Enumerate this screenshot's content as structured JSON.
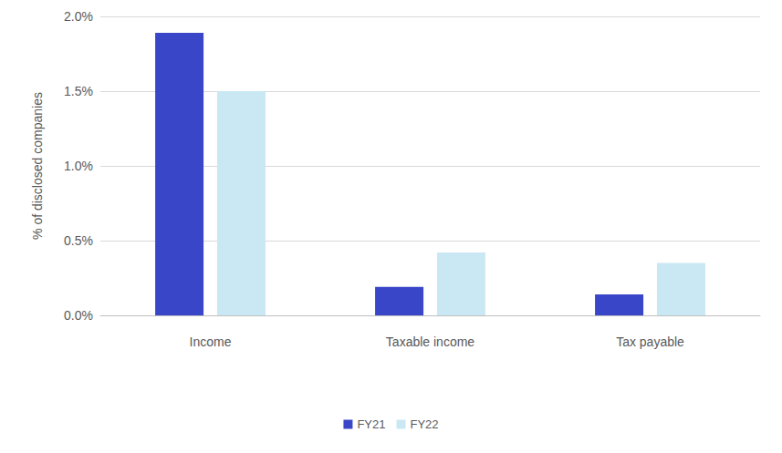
{
  "chart_data": {
    "type": "bar",
    "y_label": "% of disclosed companies",
    "categories": [
      "Income",
      "Taxable income",
      "Tax payable"
    ],
    "series": [
      {
        "name": "FY21",
        "color": "#3a46c8",
        "values": [
          1.89,
          0.19,
          0.14
        ]
      },
      {
        "name": "FY22",
        "color": "#c9e8f3",
        "values": [
          1.5,
          0.42,
          0.35
        ]
      }
    ],
    "ylim": [
      0,
      2.0
    ],
    "yticks": [
      {
        "value": 0,
        "label": "0.0%"
      },
      {
        "value": 0.5,
        "label": "0.5%"
      },
      {
        "value": 1.0,
        "label": "1.0%"
      },
      {
        "value": 1.5,
        "label": "1.5%"
      },
      {
        "value": 2.0,
        "label": "2.0%"
      }
    ],
    "grid": true,
    "legend": "bottom"
  }
}
